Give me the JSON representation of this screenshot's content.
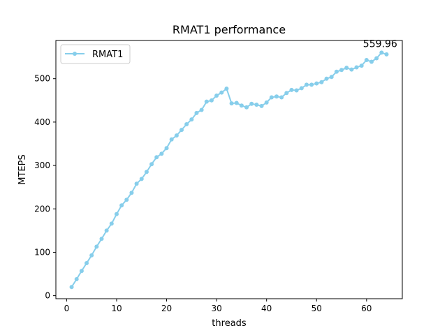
{
  "chart_data": {
    "type": "line",
    "title": "RMAT1 performance",
    "xlabel": "threads",
    "ylabel": "MTEPS",
    "xlim": [
      -2.15,
      67.15
    ],
    "ylim": [
      -7,
      588
    ],
    "xticks": [
      0,
      10,
      20,
      30,
      40,
      50,
      60
    ],
    "yticks": [
      0,
      100,
      200,
      300,
      400,
      500
    ],
    "grid": false,
    "legend_position": "upper-left",
    "series": [
      {
        "name": "RMAT1",
        "color": "#87CEEB",
        "marker": "circle",
        "x": [
          1,
          2,
          3,
          4,
          5,
          6,
          7,
          8,
          9,
          10,
          11,
          12,
          13,
          14,
          15,
          16,
          17,
          18,
          19,
          20,
          21,
          22,
          23,
          24,
          25,
          26,
          27,
          28,
          29,
          30,
          31,
          32,
          33,
          34,
          35,
          36,
          37,
          38,
          39,
          40,
          41,
          42,
          43,
          44,
          45,
          46,
          47,
          48,
          49,
          50,
          51,
          52,
          53,
          54,
          55,
          56,
          57,
          58,
          59,
          60,
          61,
          62,
          63,
          64
        ],
        "values": [
          20,
          38,
          57,
          75,
          93,
          113,
          131,
          150,
          166,
          188,
          208,
          221,
          237,
          258,
          269,
          285,
          303,
          319,
          327,
          340,
          360,
          369,
          382,
          395,
          406,
          421,
          428,
          447,
          450,
          461,
          468,
          477,
          443,
          444,
          438,
          434,
          442,
          440,
          437,
          445,
          457,
          459,
          457,
          467,
          474,
          473,
          478,
          486,
          486,
          489,
          492,
          500,
          504,
          516,
          520,
          525,
          521,
          526,
          530,
          543,
          539,
          547,
          560,
          556
        ]
      }
    ],
    "annotations": [
      {
        "text": "559.96",
        "x": 63,
        "y": 559.96
      }
    ]
  }
}
